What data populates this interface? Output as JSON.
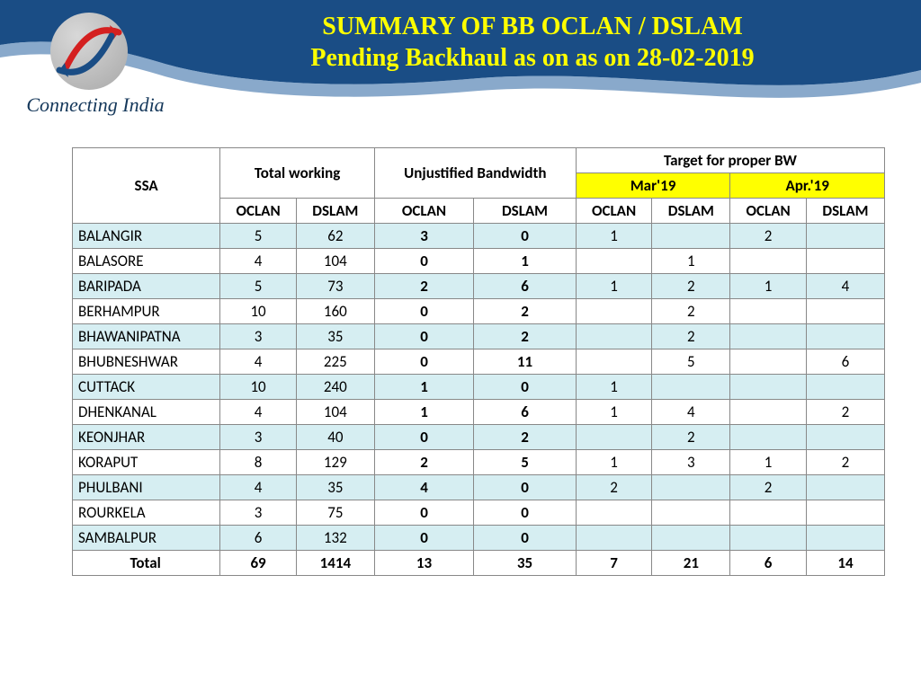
{
  "title_line1": "SUMMARY OF BB OCLAN / DSLAM",
  "title_line2": "Pending Backhaul as on  as on 28-02-2019",
  "tagline": "Connecting India",
  "colors": {
    "header_bg": "#1a4d85",
    "title_text": "#ffff00",
    "month_bg": "#ffff00",
    "alt_row": "#d6eef2",
    "border": "#888888"
  },
  "header": {
    "ssa": "SSA",
    "total_working": "Total working",
    "unjustified": "Unjustified Bandwidth",
    "target": "Target for proper BW",
    "mar": "Mar'19",
    "apr": "Apr.'19",
    "oclan": "OCLAN",
    "dslam": "DSLAM"
  },
  "rows": [
    {
      "ssa": "BALANGIR",
      "tw_o": "5",
      "tw_d": "62",
      "ub_o": "3",
      "ub_d": "0",
      "m_o": "1",
      "m_d": "",
      "a_o": "2",
      "a_d": ""
    },
    {
      "ssa": "BALASORE",
      "tw_o": "4",
      "tw_d": "104",
      "ub_o": "0",
      "ub_d": "1",
      "m_o": "",
      "m_d": "1",
      "a_o": "",
      "a_d": ""
    },
    {
      "ssa": "BARIPADA",
      "tw_o": "5",
      "tw_d": "73",
      "ub_o": "2",
      "ub_d": "6",
      "m_o": "1",
      "m_d": "2",
      "a_o": "1",
      "a_d": "4"
    },
    {
      "ssa": "BERHAMPUR",
      "tw_o": "10",
      "tw_d": "160",
      "ub_o": "0",
      "ub_d": "2",
      "m_o": "",
      "m_d": "2",
      "a_o": "",
      "a_d": ""
    },
    {
      "ssa": "BHAWANIPATNA",
      "tw_o": "3",
      "tw_d": "35",
      "ub_o": "0",
      "ub_d": "2",
      "m_o": "",
      "m_d": "2",
      "a_o": "",
      "a_d": ""
    },
    {
      "ssa": "BHUBNESHWAR",
      "tw_o": "4",
      "tw_d": "225",
      "ub_o": "0",
      "ub_d": "11",
      "m_o": "",
      "m_d": "5",
      "a_o": "",
      "a_d": "6"
    },
    {
      "ssa": "CUTTACK",
      "tw_o": "10",
      "tw_d": "240",
      "ub_o": "1",
      "ub_d": "0",
      "m_o": "1",
      "m_d": "",
      "a_o": "",
      "a_d": ""
    },
    {
      "ssa": "DHENKANAL",
      "tw_o": "4",
      "tw_d": "104",
      "ub_o": "1",
      "ub_d": "6",
      "m_o": "1",
      "m_d": "4",
      "a_o": "",
      "a_d": "2"
    },
    {
      "ssa": "KEONJHAR",
      "tw_o": "3",
      "tw_d": "40",
      "ub_o": "0",
      "ub_d": "2",
      "m_o": "",
      "m_d": "2",
      "a_o": "",
      "a_d": ""
    },
    {
      "ssa": "KORAPUT",
      "tw_o": "8",
      "tw_d": "129",
      "ub_o": "2",
      "ub_d": "5",
      "m_o": "1",
      "m_d": "3",
      "a_o": "1",
      "a_d": "2"
    },
    {
      "ssa": "PHULBANI",
      "tw_o": "4",
      "tw_d": "35",
      "ub_o": "4",
      "ub_d": "0",
      "m_o": "2",
      "m_d": "",
      "a_o": "2",
      "a_d": ""
    },
    {
      "ssa": "ROURKELA",
      "tw_o": "3",
      "tw_d": "75",
      "ub_o": "0",
      "ub_d": "0",
      "m_o": "",
      "m_d": "",
      "a_o": "",
      "a_d": ""
    },
    {
      "ssa": "SAMBALPUR",
      "tw_o": "6",
      "tw_d": "132",
      "ub_o": "0",
      "ub_d": "0",
      "m_o": "",
      "m_d": "",
      "a_o": "",
      "a_d": ""
    }
  ],
  "total": {
    "ssa": "Total",
    "tw_o": "69",
    "tw_d": "1414",
    "ub_o": "13",
    "ub_d": "35",
    "m_o": "7",
    "m_d": "21",
    "a_o": "6",
    "a_d": "14"
  }
}
